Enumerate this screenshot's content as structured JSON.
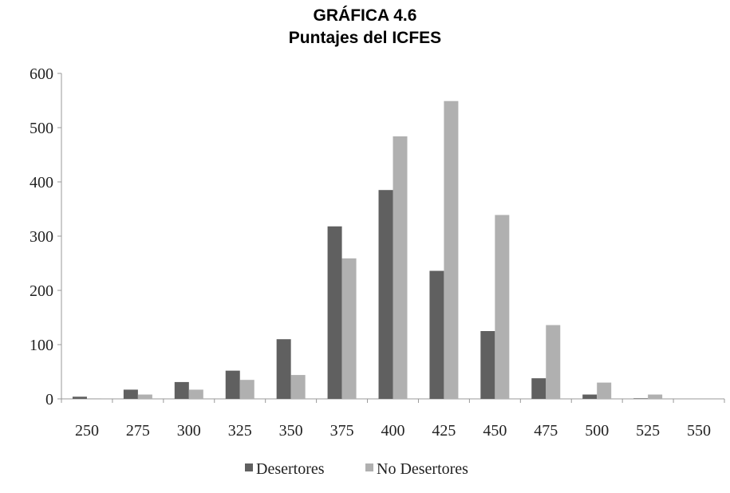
{
  "chart_data": {
    "type": "bar",
    "title": "GRÁFICA 4.6",
    "subtitle": "Puntajes del ICFES",
    "xlabel": "",
    "ylabel": "",
    "categories": [
      "250",
      "275",
      "300",
      "325",
      "350",
      "375",
      "400",
      "425",
      "450",
      "475",
      "500",
      "525",
      "550"
    ],
    "series": [
      {
        "name": "Desertores",
        "color": "#606060",
        "values": [
          4,
          17,
          31,
          52,
          110,
          318,
          385,
          236,
          125,
          38,
          8,
          1,
          0
        ]
      },
      {
        "name": "No Desertores",
        "color": "#b0b0b0",
        "values": [
          1,
          8,
          17,
          35,
          44,
          259,
          484,
          549,
          339,
          136,
          30,
          8,
          0
        ]
      }
    ],
    "ylim": [
      0,
      600
    ],
    "yticks": [
      0,
      100,
      200,
      300,
      400,
      500,
      600
    ],
    "grid": false,
    "legend_position": "bottom"
  }
}
